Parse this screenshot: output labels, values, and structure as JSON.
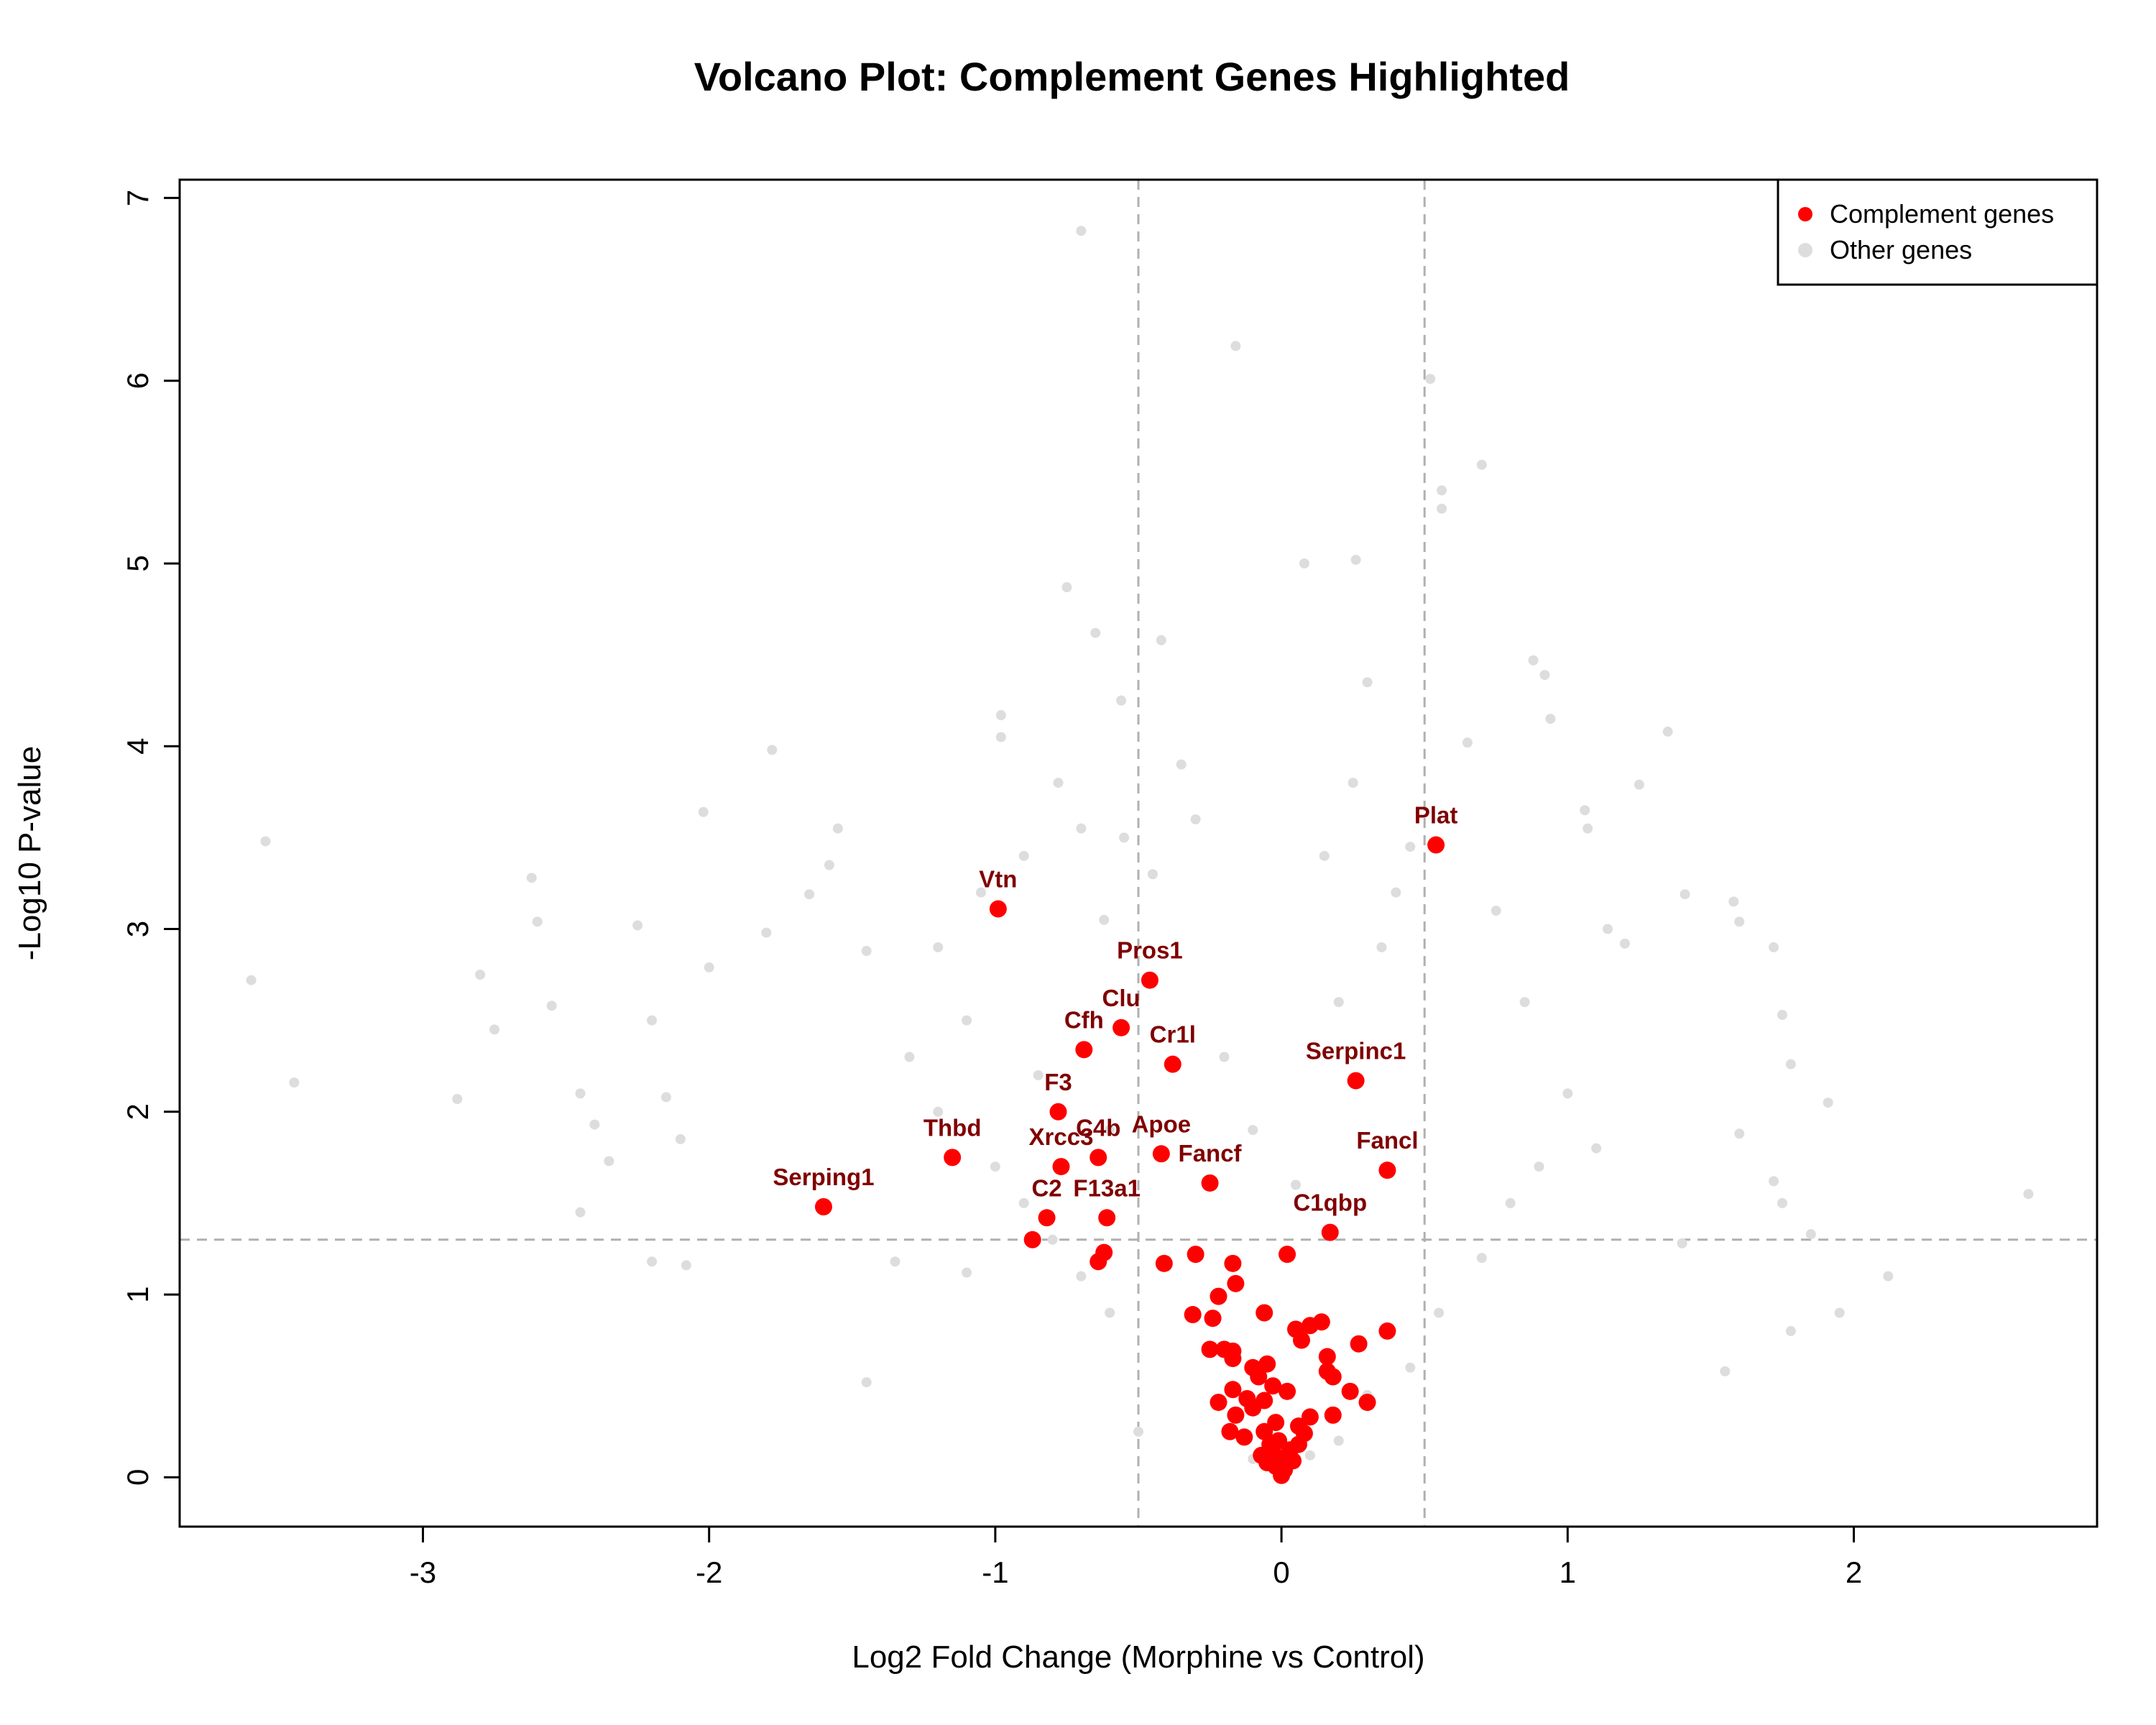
{
  "chart_data": {
    "type": "scatter",
    "title": "Volcano Plot: Complement Genes Highlighted",
    "xlabel": "Log2 Fold Change (Morphine vs Control)",
    "ylabel": "-Log10 P-value",
    "xlim": [
      -3.85,
      2.85
    ],
    "ylim": [
      -0.27,
      7.1
    ],
    "xticks": [
      -3,
      -2,
      -1,
      0,
      1,
      2
    ],
    "yticks": [
      0,
      1,
      2,
      3,
      4,
      5,
      6,
      7
    ],
    "thresholds": {
      "x": [
        -0.5,
        0.5
      ],
      "y": 1.3
    },
    "grid": false,
    "legend_position": "top-right",
    "colors": {
      "highlight": "#ff0000",
      "other": "#dddddd",
      "label": "#800000",
      "threshold": "#b0b0b0"
    },
    "legend": [
      {
        "label": "Complement genes",
        "color": "#ff0000"
      },
      {
        "label": "Other genes",
        "color": "#dddddd"
      }
    ],
    "series": [
      {
        "name": "Other genes",
        "color": "#dddddd",
        "points": [
          [
            -3.55,
            3.48
          ],
          [
            -3.6,
            2.72
          ],
          [
            -3.45,
            2.16
          ],
          [
            -2.8,
            2.75
          ],
          [
            -2.75,
            2.45
          ],
          [
            -2.6,
            3.04
          ],
          [
            -2.62,
            3.28
          ],
          [
            -2.55,
            2.58
          ],
          [
            -2.45,
            2.1
          ],
          [
            -2.88,
            2.07
          ],
          [
            -2.4,
            1.93
          ],
          [
            -2.35,
            1.73
          ],
          [
            -2.25,
            3.02
          ],
          [
            -2.2,
            2.5
          ],
          [
            -2.15,
            2.08
          ],
          [
            -2.1,
            1.85
          ],
          [
            -2.02,
            3.64
          ],
          [
            -2.0,
            2.79
          ],
          [
            -1.78,
            3.98
          ],
          [
            -1.8,
            2.98
          ],
          [
            -1.65,
            3.19
          ],
          [
            -1.55,
            3.55
          ],
          [
            -1.58,
            3.35
          ],
          [
            -1.45,
            2.88
          ],
          [
            -2.08,
            1.16
          ],
          [
            -2.2,
            1.18
          ],
          [
            -2.45,
            1.45
          ],
          [
            -1.45,
            0.52
          ],
          [
            -1.35,
            1.18
          ],
          [
            -1.1,
            1.12
          ],
          [
            -0.98,
            4.17
          ],
          [
            -0.98,
            4.05
          ],
          [
            -0.75,
            4.87
          ],
          [
            -0.7,
            6.82
          ],
          [
            -0.65,
            4.62
          ],
          [
            -0.56,
            4.25
          ],
          [
            -0.42,
            4.58
          ],
          [
            -0.16,
            6.19
          ],
          [
            0.08,
            5.0
          ],
          [
            0.26,
            5.02
          ],
          [
            0.52,
            6.01
          ],
          [
            0.56,
            5.4
          ],
          [
            0.56,
            5.3
          ],
          [
            0.7,
            5.54
          ],
          [
            0.88,
            4.47
          ],
          [
            0.92,
            4.39
          ],
          [
            0.94,
            4.15
          ],
          [
            1.06,
            3.65
          ],
          [
            1.07,
            3.55
          ],
          [
            1.14,
            3.0
          ],
          [
            1.2,
            2.92
          ],
          [
            1.25,
            3.79
          ],
          [
            1.35,
            4.08
          ],
          [
            1.41,
            3.19
          ],
          [
            1.58,
            3.15
          ],
          [
            1.6,
            3.04
          ],
          [
            1.72,
            2.9
          ],
          [
            1.75,
            2.53
          ],
          [
            1.78,
            2.26
          ],
          [
            1.91,
            2.05
          ],
          [
            1.6,
            1.88
          ],
          [
            1.75,
            1.5
          ],
          [
            1.72,
            1.62
          ],
          [
            1.85,
            1.33
          ],
          [
            1.78,
            0.8
          ],
          [
            2.12,
            1.1
          ],
          [
            2.61,
            1.55
          ],
          [
            1.95,
            0.9
          ],
          [
            1.55,
            0.58
          ],
          [
            1.4,
            1.28
          ],
          [
            -0.5,
            0.25
          ],
          [
            -0.1,
            0.1
          ],
          [
            0.1,
            0.12
          ],
          [
            0.2,
            0.2
          ],
          [
            0.3,
            0.45
          ],
          [
            0.45,
            0.6
          ],
          [
            0.55,
            0.9
          ],
          [
            0.7,
            1.2
          ],
          [
            0.8,
            1.5
          ],
          [
            0.9,
            1.7
          ],
          [
            -0.6,
            0.9
          ],
          [
            -0.7,
            1.1
          ],
          [
            -0.8,
            1.3
          ],
          [
            -0.9,
            1.5
          ],
          [
            -1.0,
            1.7
          ],
          [
            -1.2,
            2.0
          ],
          [
            -1.3,
            2.3
          ],
          [
            -1.1,
            2.5
          ],
          [
            -0.85,
            2.2
          ],
          [
            -0.6,
            1.9
          ],
          [
            0.35,
            2.9
          ],
          [
            0.4,
            3.2
          ],
          [
            0.45,
            3.45
          ],
          [
            0.25,
            3.8
          ],
          [
            0.3,
            4.35
          ],
          [
            0.65,
            4.02
          ],
          [
            0.75,
            3.1
          ],
          [
            0.85,
            2.6
          ],
          [
            1.0,
            2.1
          ],
          [
            1.1,
            1.8
          ],
          [
            -0.3,
            3.6
          ],
          [
            -0.35,
            3.9
          ],
          [
            -0.45,
            3.3
          ],
          [
            -0.55,
            3.5
          ],
          [
            -0.62,
            3.05
          ],
          [
            -0.78,
            3.8
          ],
          [
            -0.7,
            3.55
          ],
          [
            -0.9,
            3.4
          ],
          [
            -1.05,
            3.2
          ],
          [
            -1.2,
            2.9
          ],
          [
            0.15,
            3.4
          ],
          [
            0.2,
            2.6
          ],
          [
            -0.2,
            2.3
          ],
          [
            -0.1,
            1.9
          ],
          [
            0.05,
            1.6
          ]
        ]
      },
      {
        "name": "Complement genes",
        "color": "#ff0000",
        "points": [
          {
            "x": 0.54,
            "y": 3.46,
            "label": "Plat"
          },
          {
            "x": -0.99,
            "y": 3.11,
            "label": "Vtn"
          },
          {
            "x": -0.46,
            "y": 2.72,
            "label": "Pros1"
          },
          {
            "x": -0.56,
            "y": 2.46,
            "label": "Clu"
          },
          {
            "x": -0.69,
            "y": 2.34,
            "label": "Cfh"
          },
          {
            "x": -0.38,
            "y": 2.26,
            "label": "Cr1l"
          },
          {
            "x": 0.26,
            "y": 2.17,
            "label": "Serpinc1"
          },
          {
            "x": -0.78,
            "y": 2.0,
            "label": "F3"
          },
          {
            "x": -1.15,
            "y": 1.75,
            "label": "Thbd"
          },
          {
            "x": -0.64,
            "y": 1.75,
            "label": "C4b"
          },
          {
            "x": -0.42,
            "y": 1.77,
            "label": "Apoe"
          },
          {
            "x": -0.77,
            "y": 1.7,
            "label": "Xrcc3"
          },
          {
            "x": 0.37,
            "y": 1.68,
            "label": "Fancl"
          },
          {
            "x": -0.25,
            "y": 1.61,
            "label": "Fancf"
          },
          {
            "x": -1.6,
            "y": 1.48,
            "label": "Serping1"
          },
          {
            "x": -0.61,
            "y": 1.42,
            "label": "F13a1"
          },
          {
            "x": -0.82,
            "y": 1.42,
            "label": "C2"
          },
          {
            "x": 0.17,
            "y": 1.34,
            "label": "C1qbp"
          },
          {
            "x": -0.87,
            "y": 1.3
          },
          {
            "x": -0.62,
            "y": 1.23
          },
          {
            "x": -0.64,
            "y": 1.18
          },
          {
            "x": -0.41,
            "y": 1.17
          },
          {
            "x": -0.3,
            "y": 1.22
          },
          {
            "x": -0.17,
            "y": 1.17
          },
          {
            "x": 0.02,
            "y": 1.22
          },
          {
            "x": -0.16,
            "y": 1.06
          },
          {
            "x": -0.22,
            "y": 0.99
          },
          {
            "x": -0.31,
            "y": 0.89
          },
          {
            "x": -0.24,
            "y": 0.87
          },
          {
            "x": -0.06,
            "y": 0.9
          },
          {
            "x": 0.05,
            "y": 0.81
          },
          {
            "x": 0.1,
            "y": 0.83
          },
          {
            "x": 0.14,
            "y": 0.85
          },
          {
            "x": 0.37,
            "y": 0.8
          },
          {
            "x": 0.27,
            "y": 0.73
          },
          {
            "x": 0.07,
            "y": 0.75
          },
          {
            "x": -0.25,
            "y": 0.7
          },
          {
            "x": -0.2,
            "y": 0.7
          },
          {
            "x": -0.17,
            "y": 0.69
          },
          {
            "x": -0.17,
            "y": 0.65
          },
          {
            "x": 0.16,
            "y": 0.66
          },
          {
            "x": 0.16,
            "y": 0.58
          },
          {
            "x": 0.18,
            "y": 0.55
          },
          {
            "x": -0.1,
            "y": 0.6
          },
          {
            "x": -0.05,
            "y": 0.62
          },
          {
            "x": -0.08,
            "y": 0.55
          },
          {
            "x": -0.03,
            "y": 0.5
          },
          {
            "x": 0.02,
            "y": 0.47
          },
          {
            "x": -0.17,
            "y": 0.48
          },
          {
            "x": -0.22,
            "y": 0.41
          },
          {
            "x": -0.12,
            "y": 0.43
          },
          {
            "x": -0.06,
            "y": 0.42
          },
          {
            "x": -0.1,
            "y": 0.38
          },
          {
            "x": -0.16,
            "y": 0.34
          },
          {
            "x": 0.24,
            "y": 0.47
          },
          {
            "x": 0.3,
            "y": 0.41
          },
          {
            "x": 0.18,
            "y": 0.34
          },
          {
            "x": 0.1,
            "y": 0.33
          },
          {
            "x": 0.06,
            "y": 0.28
          },
          {
            "x": -0.02,
            "y": 0.3
          },
          {
            "x": -0.18,
            "y": 0.25
          },
          {
            "x": -0.13,
            "y": 0.22
          },
          {
            "x": -0.06,
            "y": 0.25
          },
          {
            "x": -0.04,
            "y": 0.18
          },
          {
            "x": -0.01,
            "y": 0.2
          },
          {
            "x": 0.03,
            "y": 0.15
          },
          {
            "x": 0.08,
            "y": 0.24
          },
          {
            "x": 0.06,
            "y": 0.18
          },
          {
            "x": -0.07,
            "y": 0.12
          },
          {
            "x": -0.05,
            "y": 0.08
          },
          {
            "x": -0.02,
            "y": 0.06
          },
          {
            "x": 0.01,
            "y": 0.04
          },
          {
            "x": 0.0,
            "y": 0.01
          },
          {
            "x": 0.04,
            "y": 0.09
          },
          {
            "x": -0.03,
            "y": 0.14
          },
          {
            "x": 0.02,
            "y": 0.11
          }
        ]
      }
    ]
  }
}
